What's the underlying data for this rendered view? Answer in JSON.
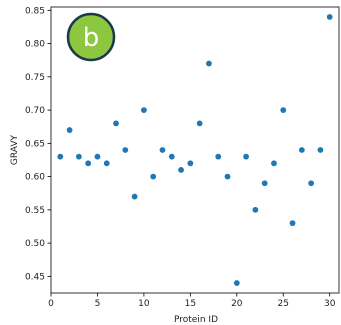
{
  "chart_data": {
    "type": "scatter",
    "xlabel": "Protein ID",
    "ylabel": "GRAVY",
    "xlim": [
      0,
      31
    ],
    "ylim": [
      0.425,
      0.855
    ],
    "xticks": [
      0,
      5,
      10,
      15,
      20,
      25,
      30
    ],
    "yticks": [
      0.45,
      0.5,
      0.55,
      0.6,
      0.65,
      0.7,
      0.75,
      0.8,
      0.85
    ],
    "grid": false,
    "marker_color": "#1f77b4",
    "points": [
      {
        "x": 1,
        "y": 0.63
      },
      {
        "x": 2,
        "y": 0.67
      },
      {
        "x": 3,
        "y": 0.63
      },
      {
        "x": 4,
        "y": 0.62
      },
      {
        "x": 5,
        "y": 0.63
      },
      {
        "x": 6,
        "y": 0.62
      },
      {
        "x": 7,
        "y": 0.68
      },
      {
        "x": 8,
        "y": 0.64
      },
      {
        "x": 9,
        "y": 0.57
      },
      {
        "x": 10,
        "y": 0.7
      },
      {
        "x": 11,
        "y": 0.6
      },
      {
        "x": 12,
        "y": 0.64
      },
      {
        "x": 13,
        "y": 0.63
      },
      {
        "x": 14,
        "y": 0.61
      },
      {
        "x": 15,
        "y": 0.62
      },
      {
        "x": 16,
        "y": 0.68
      },
      {
        "x": 17,
        "y": 0.77
      },
      {
        "x": 18,
        "y": 0.63
      },
      {
        "x": 19,
        "y": 0.6
      },
      {
        "x": 20,
        "y": 0.44
      },
      {
        "x": 21,
        "y": 0.63
      },
      {
        "x": 22,
        "y": 0.55
      },
      {
        "x": 23,
        "y": 0.59
      },
      {
        "x": 24,
        "y": 0.62
      },
      {
        "x": 25,
        "y": 0.7
      },
      {
        "x": 26,
        "y": 0.53
      },
      {
        "x": 27,
        "y": 0.64
      },
      {
        "x": 28,
        "y": 0.59
      },
      {
        "x": 29,
        "y": 0.64
      },
      {
        "x": 30,
        "y": 0.84
      }
    ]
  },
  "badge": {
    "label": "b",
    "fill_color": "#8dc63f",
    "stroke_color": "#1a3a4a"
  }
}
